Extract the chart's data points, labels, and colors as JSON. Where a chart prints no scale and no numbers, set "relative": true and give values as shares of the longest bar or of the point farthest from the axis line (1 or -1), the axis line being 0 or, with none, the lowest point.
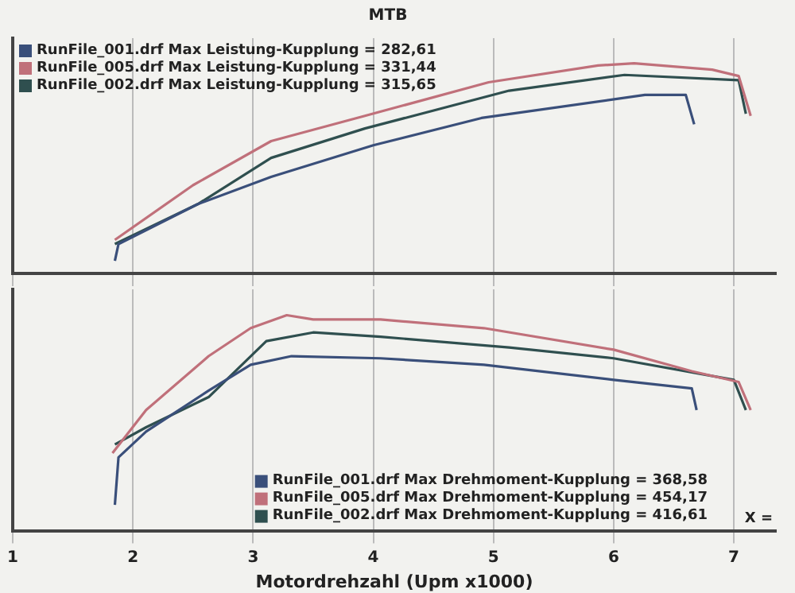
{
  "chart_data": [
    {
      "type": "line",
      "title": "MTB",
      "relative": true,
      "xlim": [
        1,
        7.35
      ],
      "xticks": [
        1,
        2,
        3,
        4,
        5,
        6,
        7
      ],
      "tick_labels": false,
      "grid": "x",
      "legend": "top left",
      "marker": "none",
      "line_style": "solid",
      "series": [
        {
          "name": "RunFile_001.drf Max Leistung-Kupplung = 282,61",
          "color": "#3a4f7a",
          "x": [
            1.85,
            1.88,
            2.54,
            3.15,
            4.0,
            4.9,
            6.26,
            6.6,
            6.67
          ],
          "values": [
            0.06,
            0.14,
            0.33,
            0.46,
            0.61,
            0.74,
            0.85,
            0.85,
            0.71
          ]
        },
        {
          "name": "RunFile_005.drf Max Leistung-Kupplung = 331,44",
          "color": "#c0707a",
          "x": [
            1.85,
            2.5,
            3.15,
            3.93,
            4.96,
            5.87,
            6.17,
            6.82,
            7.04,
            7.14
          ],
          "values": [
            0.16,
            0.42,
            0.63,
            0.75,
            0.91,
            0.99,
            1.0,
            0.97,
            0.94,
            0.75
          ]
        },
        {
          "name": "RunFile_002.drf Max Leistung-Kupplung = 315,65",
          "color": "#2f4f4f",
          "x": [
            1.85,
            2.54,
            3.15,
            3.93,
            5.13,
            6.09,
            7.04,
            7.1
          ],
          "values": [
            0.14,
            0.33,
            0.55,
            0.69,
            0.87,
            0.945,
            0.92,
            0.76
          ]
        }
      ]
    },
    {
      "type": "line",
      "xlabel": "Motordrehzahl (Upm x1000)",
      "relative": true,
      "xlim": [
        1,
        7.35
      ],
      "xticks": [
        1,
        2,
        3,
        4,
        5,
        6,
        7
      ],
      "tick_labels": "x",
      "grid": "x",
      "legend": "bottom right",
      "marker": "none",
      "line_style": "solid",
      "annotations": [
        "X ="
      ],
      "series": [
        {
          "name": "RunFile_001.drf Max Drehmoment-Kupplung = 368,58",
          "color": "#3a4f7a",
          "x": [
            1.85,
            1.88,
            2.11,
            2.63,
            2.98,
            3.32,
            4.06,
            4.92,
            6.0,
            6.65,
            6.69
          ],
          "values": [
            0.12,
            0.34,
            0.46,
            0.65,
            0.77,
            0.81,
            0.8,
            0.77,
            0.7,
            0.66,
            0.56
          ]
        },
        {
          "name": "RunFile_005.drf Max Drehmoment-Kupplung = 454,17",
          "color": "#c0707a",
          "x": [
            1.83,
            2.11,
            2.63,
            2.98,
            3.28,
            3.5,
            4.06,
            4.92,
            6.0,
            6.65,
            7.04,
            7.14
          ],
          "values": [
            0.36,
            0.56,
            0.81,
            0.94,
            1.0,
            0.98,
            0.98,
            0.94,
            0.84,
            0.74,
            0.69,
            0.56
          ]
        },
        {
          "name": "RunFile_002.drf Max Drehmoment-Kupplung = 416,61",
          "color": "#2f4f4f",
          "x": [
            1.85,
            2.11,
            2.63,
            3.11,
            3.5,
            4.06,
            5.13,
            6.0,
            7.0,
            7.1
          ],
          "values": [
            0.4,
            0.48,
            0.62,
            0.88,
            0.92,
            0.9,
            0.85,
            0.8,
            0.7,
            0.56
          ]
        }
      ]
    }
  ]
}
